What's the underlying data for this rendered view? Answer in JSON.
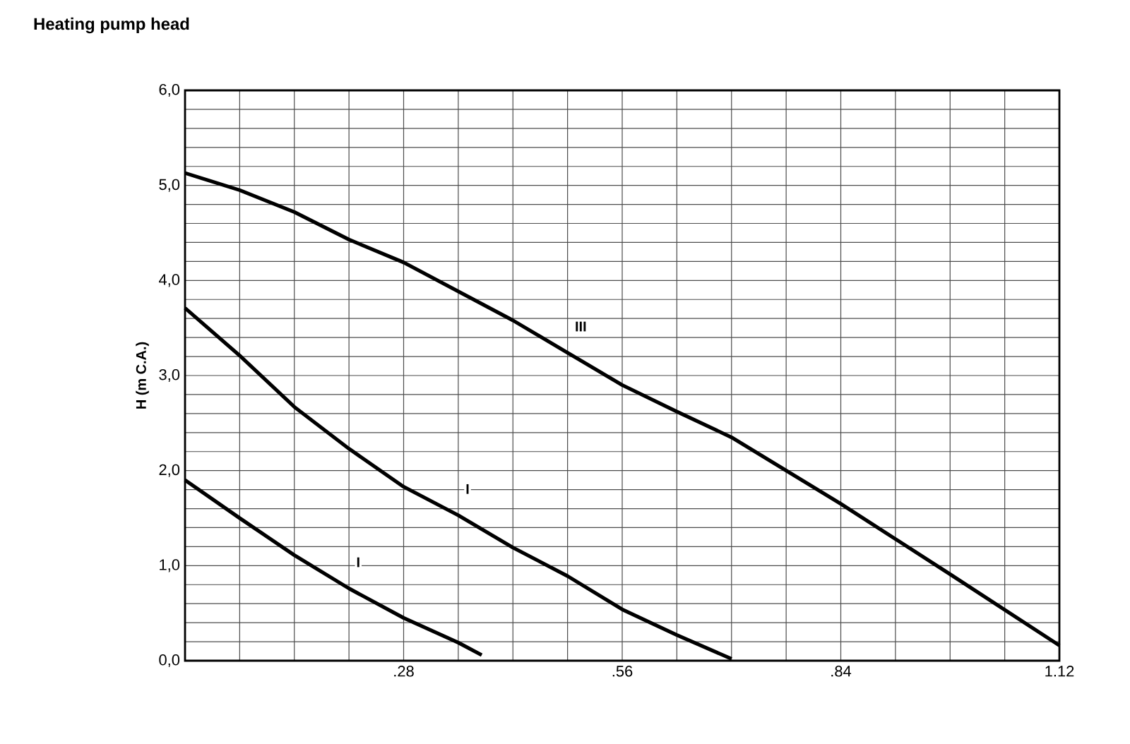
{
  "chart_data": {
    "type": "line",
    "title": "Heating pump head",
    "ylabel": "H (m C.A.)",
    "series": [
      {
        "name": "III",
        "color": "#000000",
        "x": [
          0,
          0.07,
          0.14,
          0.21,
          0.28,
          0.42,
          0.49,
          0.56,
          0.63,
          0.7,
          0.84,
          0.98,
          1.12
        ],
        "values": [
          5.13,
          4.95,
          4.72,
          4.43,
          4.19,
          3.58,
          3.24,
          2.9,
          2.62,
          2.35,
          1.65,
          0.91,
          0.16
        ]
      },
      {
        "name": "I",
        "color": "#000000",
        "x": [
          0,
          0.07,
          0.14,
          0.21,
          0.28,
          0.35,
          0.42,
          0.49,
          0.56,
          0.63,
          0.7
        ],
        "values": [
          3.71,
          3.21,
          2.67,
          2.23,
          1.83,
          1.53,
          1.19,
          0.89,
          0.54,
          0.27,
          0.02
        ]
      },
      {
        "name": "I",
        "color": "#000000",
        "x": [
          0,
          0.07,
          0.14,
          0.21,
          0.28,
          0.35,
          0.38
        ],
        "values": [
          1.9,
          1.5,
          1.11,
          0.76,
          0.45,
          0.19,
          0.06
        ]
      }
    ],
    "xlim": [
      0,
      1.12
    ],
    "ylim": [
      0,
      6
    ],
    "xticks": [
      {
        "value": 0,
        "label": null
      },
      {
        "value": 0.07,
        "label": null
      },
      {
        "value": 0.14,
        "label": null
      },
      {
        "value": 0.21,
        "label": null
      },
      {
        "value": 0.28,
        "label": ".28"
      },
      {
        "value": 0.35,
        "label": null
      },
      {
        "value": 0.42,
        "label": null
      },
      {
        "value": 0.49,
        "label": null
      },
      {
        "value": 0.56,
        "label": ".56"
      },
      {
        "value": 0.63,
        "label": null
      },
      {
        "value": 0.7,
        "label": null
      },
      {
        "value": 0.77,
        "label": null
      },
      {
        "value": 0.84,
        "label": ".84"
      },
      {
        "value": 0.91,
        "label": null
      },
      {
        "value": 0.98,
        "label": null
      },
      {
        "value": 1.05,
        "label": null
      },
      {
        "value": 1.12,
        "label": "1.12"
      }
    ],
    "yticks": [
      {
        "value": 0,
        "label": "0,0"
      },
      {
        "value": 0.2,
        "label": null
      },
      {
        "value": 0.4,
        "label": null
      },
      {
        "value": 0.6,
        "label": null
      },
      {
        "value": 0.8,
        "label": null
      },
      {
        "value": 1,
        "label": "1,0"
      },
      {
        "value": 1.2,
        "label": null
      },
      {
        "value": 1.4,
        "label": null
      },
      {
        "value": 1.6,
        "label": null
      },
      {
        "value": 1.8,
        "label": null
      },
      {
        "value": 2,
        "label": "2,0"
      },
      {
        "value": 2.2,
        "label": null
      },
      {
        "value": 2.4,
        "label": null
      },
      {
        "value": 2.6,
        "label": null
      },
      {
        "value": 2.8,
        "label": null
      },
      {
        "value": 3,
        "label": "3,0"
      },
      {
        "value": 3.2,
        "label": null
      },
      {
        "value": 3.4,
        "label": null
      },
      {
        "value": 3.6,
        "label": null
      },
      {
        "value": 3.8,
        "label": null
      },
      {
        "value": 4,
        "label": "4,0"
      },
      {
        "value": 4.2,
        "label": null
      },
      {
        "value": 4.4,
        "label": null
      },
      {
        "value": 4.6,
        "label": null
      },
      {
        "value": 4.8,
        "label": null
      },
      {
        "value": 5,
        "label": "5,0"
      },
      {
        "value": 5.2,
        "label": null
      },
      {
        "value": 5.4,
        "label": null
      },
      {
        "value": 5.6,
        "label": null
      },
      {
        "value": 5.8,
        "label": null
      },
      {
        "value": 6,
        "label": "6,0"
      }
    ],
    "grid": true,
    "legend": false,
    "marker": "none",
    "line_style": "solid"
  }
}
